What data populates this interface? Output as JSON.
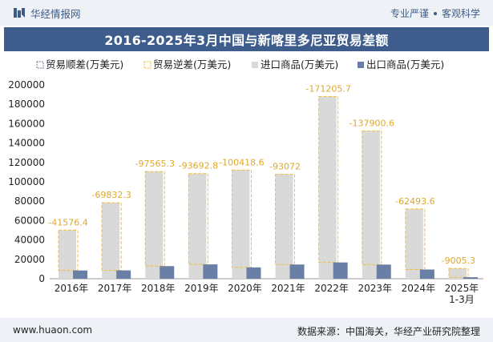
{
  "header": {
    "brand_name": "华经情报网",
    "tagline_left": "专业严谨",
    "tagline_right": "客观科学"
  },
  "footer": {
    "website": "www.huaon.com",
    "source": "数据来源：中国海关，华经产业研究院整理"
  },
  "colors": {
    "import_bar": "#d9d9d9",
    "export_bar": "#6a7fa6",
    "balance_dash": "#f2c037",
    "label_color": "#e0a82b",
    "title_bg": "#3e5d8c"
  },
  "chart_data": {
    "type": "bar",
    "title": "2016-2025年3月中国与新喀里多尼亚贸易差额",
    "xlabel": "",
    "ylabel": "",
    "ylim": [
      0,
      200000
    ],
    "yticks": [
      "0",
      "20000",
      "40000",
      "60000",
      "80000",
      "100000",
      "120000",
      "140000",
      "160000",
      "180000",
      "200000"
    ],
    "categories": [
      "2016年",
      "2017年",
      "2018年",
      "2019年",
      "2020年",
      "2021年",
      "2022年",
      "2023年",
      "2024年",
      "2025年\n1-3月"
    ],
    "legend": [
      "贸易顺差(万美元)",
      "贸易逆差(万美元)",
      "进口商品(万美元)",
      "出口商品(万美元)"
    ],
    "series": [
      {
        "name": "进口商品(万美元)",
        "values": [
          50100,
          78400,
          110600,
          108500,
          112100,
          107800,
          188000,
          152500,
          72000,
          10600
        ]
      },
      {
        "name": "出口商品(万美元)",
        "values": [
          8500,
          8600,
          13000,
          14800,
          11700,
          14700,
          16800,
          14600,
          9500,
          1600
        ]
      },
      {
        "name": "贸易逆差(万美元)",
        "values": [
          -41576.4,
          -69832.3,
          -97565.3,
          -93692.8,
          -100418.6,
          -93072,
          -171205.7,
          -137900.6,
          -62493.6,
          -9005.3
        ]
      },
      {
        "name": "贸易顺差(万美元)",
        "values": [
          0,
          0,
          0,
          0,
          0,
          0,
          0,
          0,
          0,
          0
        ]
      }
    ],
    "data_labels": [
      "-41576.4",
      "-69832.3",
      "-97565.3",
      "-93692.8",
      "-100418.6",
      "-93072",
      "-171205.7",
      "-137900.6",
      "-62493.6",
      "-9005.3"
    ]
  }
}
